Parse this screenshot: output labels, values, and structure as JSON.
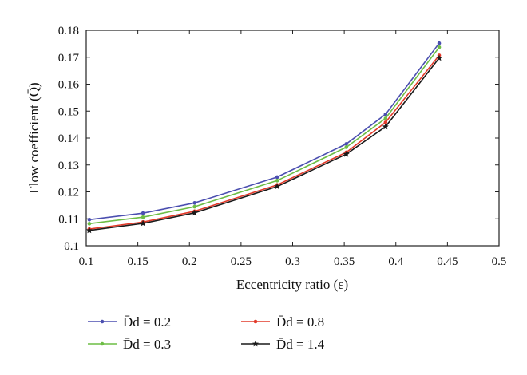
{
  "chart_data": {
    "type": "line",
    "xlabel": "Eccentricity ratio (ε)",
    "ylabel": "Flow coefficient (Q̄)",
    "xlim": [
      0.1,
      0.5
    ],
    "ylim": [
      0.1,
      0.18
    ],
    "xticks": [
      "0.1",
      "0.15",
      "0.2",
      "0.25",
      "0.3",
      "0.35",
      "0.4",
      "0.45",
      "0.5"
    ],
    "yticks": [
      "0.1",
      "0.11",
      "0.12",
      "0.13",
      "0.14",
      "0.15",
      "0.16",
      "0.17",
      "0.18"
    ],
    "grid": false,
    "legend_position": "bottom",
    "x": [
      0.103,
      0.155,
      0.205,
      0.285,
      0.352,
      0.39,
      0.442
    ],
    "series": [
      {
        "name": "D̄d = 0.2",
        "color": "#4b4fb0",
        "marker": "dot",
        "values": [
          0.1097,
          0.1121,
          0.1159,
          0.1255,
          0.1378,
          0.1488,
          0.1752
        ]
      },
      {
        "name": "D̄d = 0.3",
        "color": "#6dbd45",
        "marker": "dot",
        "values": [
          0.1082,
          0.1106,
          0.1145,
          0.1242,
          0.1366,
          0.1473,
          0.1737
        ]
      },
      {
        "name": "D̄d = 0.8",
        "color": "#e23a2a",
        "marker": "dot",
        "values": [
          0.1062,
          0.1088,
          0.1128,
          0.1226,
          0.1347,
          0.1458,
          0.1707
        ]
      },
      {
        "name": "D̄d = 1.4",
        "color": "#1a1a1a",
        "marker": "star",
        "values": [
          0.1057,
          0.1083,
          0.1122,
          0.122,
          0.134,
          0.1442,
          0.1697
        ]
      }
    ]
  }
}
